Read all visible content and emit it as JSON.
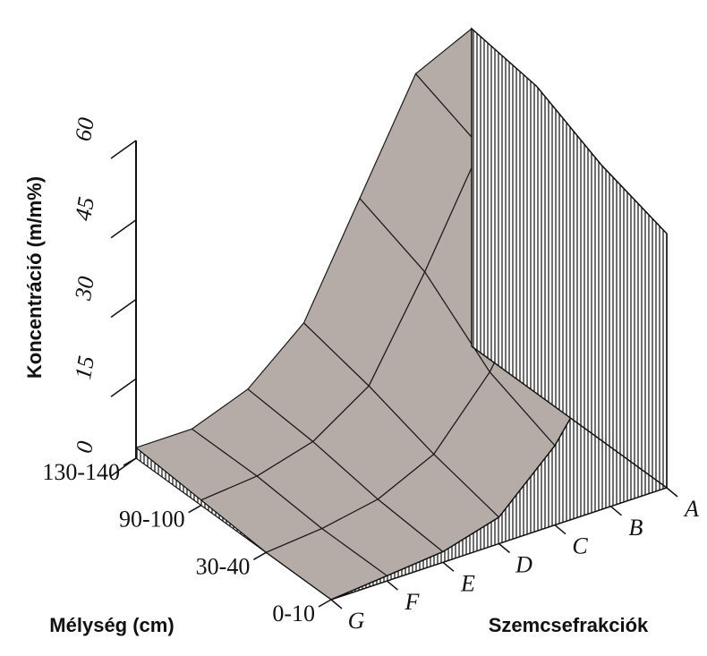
{
  "chart_data": {
    "type": "surface",
    "z_label": "Koncentráció (m/m%)",
    "depth_label": "Mélység (cm)",
    "fraction_label": "Szemcsefrakciók",
    "categories": [
      "G",
      "F",
      "E",
      "D",
      "C",
      "B",
      "A"
    ],
    "depths": [
      "0-10",
      "30-40",
      "90-100",
      "130-140"
    ],
    "values": [
      [
        0,
        1,
        2,
        5,
        15,
        30,
        48
      ],
      [
        0,
        1,
        3,
        8,
        20,
        38,
        52
      ],
      [
        1,
        2,
        5,
        12,
        30,
        50,
        58
      ],
      [
        2,
        2,
        6,
        15,
        35,
        55,
        60
      ]
    ],
    "zlim": [
      0,
      60
    ],
    "zticks": [
      0,
      15,
      30,
      45,
      60
    ],
    "color": "#b5aba7"
  }
}
